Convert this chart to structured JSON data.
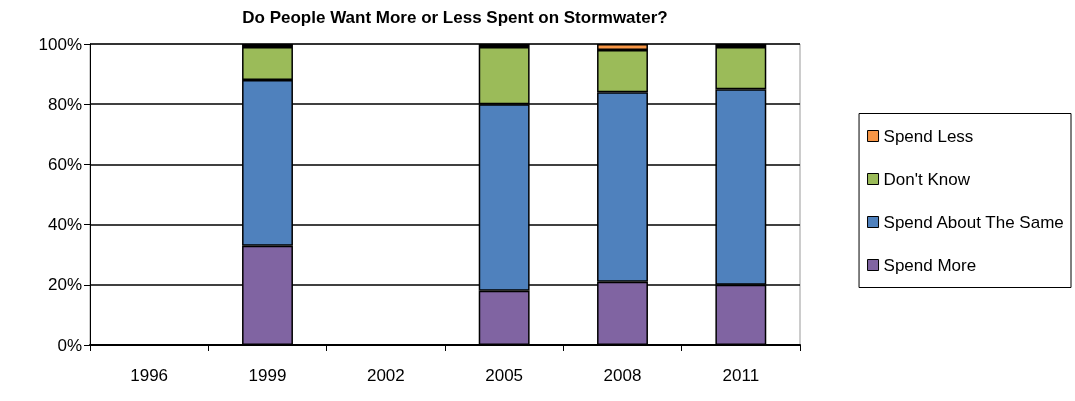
{
  "chart_data": {
    "type": "bar",
    "title": "Do People Want More or Less Spent on Stormwater?",
    "categories": [
      "1996",
      "1999",
      "2002",
      "2005",
      "2008",
      "2011"
    ],
    "stacked": true,
    "series": [
      {
        "name": "Spend More",
        "color": "#8064a2",
        "values": [
          null,
          33,
          null,
          18,
          21,
          20
        ]
      },
      {
        "name": "Spend About The Same",
        "color": "#4f81bd",
        "values": [
          null,
          55,
          null,
          62,
          63,
          65
        ]
      },
      {
        "name": "Don't Know",
        "color": "#9bbb59",
        "values": [
          null,
          11,
          null,
          19,
          14,
          14
        ]
      },
      {
        "name": "Spend Less",
        "color": "#f79646",
        "values": [
          null,
          1,
          null,
          1,
          2,
          1
        ]
      }
    ],
    "ylim": [
      0,
      100
    ],
    "yticks": [
      {
        "value": 0,
        "label": "0%"
      },
      {
        "value": 20,
        "label": "20%"
      },
      {
        "value": 40,
        "label": "40%"
      },
      {
        "value": 60,
        "label": "60%"
      },
      {
        "value": 80,
        "label": "80%"
      },
      {
        "value": 100,
        "label": "100%"
      }
    ],
    "grid": "y",
    "legend": "right"
  }
}
